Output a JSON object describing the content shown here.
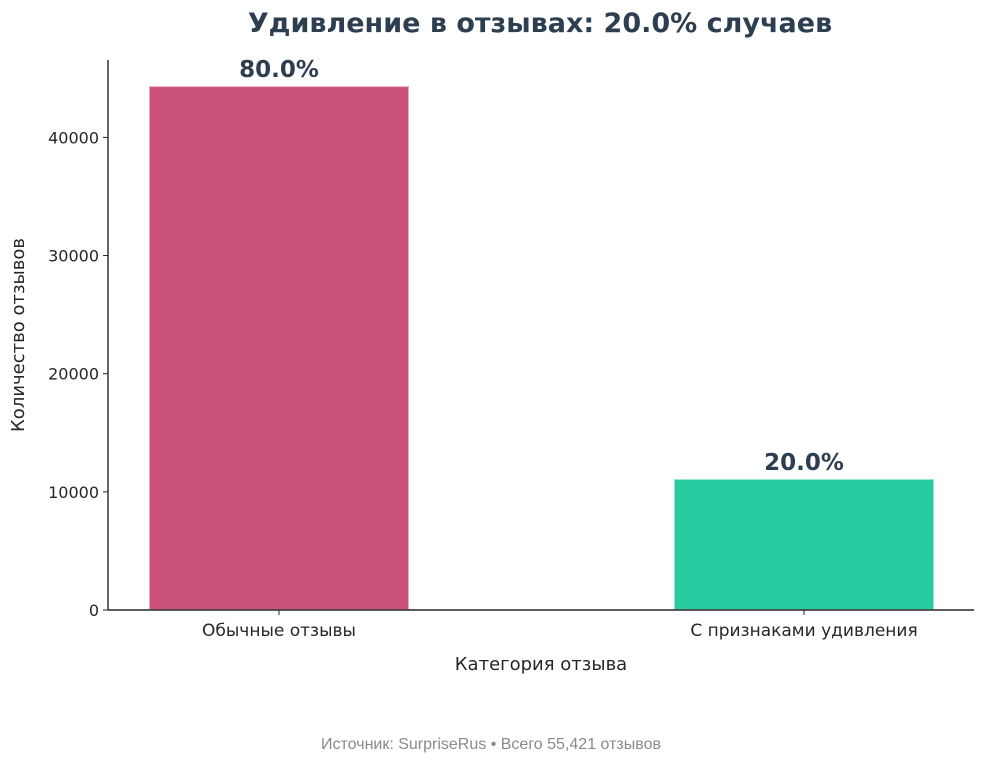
{
  "chart_data": {
    "type": "bar",
    "title": "Удивление в отзывах: 20.0% случаев",
    "xlabel": "Категория отзыва",
    "ylabel": "Количество отзывов",
    "categories": [
      "Обычные отзывы",
      "С признаками удивления"
    ],
    "values": [
      44337,
      11084
    ],
    "data_labels": [
      "80.0%",
      "20.0%"
    ],
    "colors": [
      "#c8507a",
      "#26cca0"
    ],
    "ylim": [
      0,
      46550
    ],
    "yticks": [
      0,
      10000,
      20000,
      30000,
      40000
    ],
    "grid": false,
    "legend": "none",
    "source": "Источник: SurpriseRus • Всего 55,421 отзывов"
  }
}
